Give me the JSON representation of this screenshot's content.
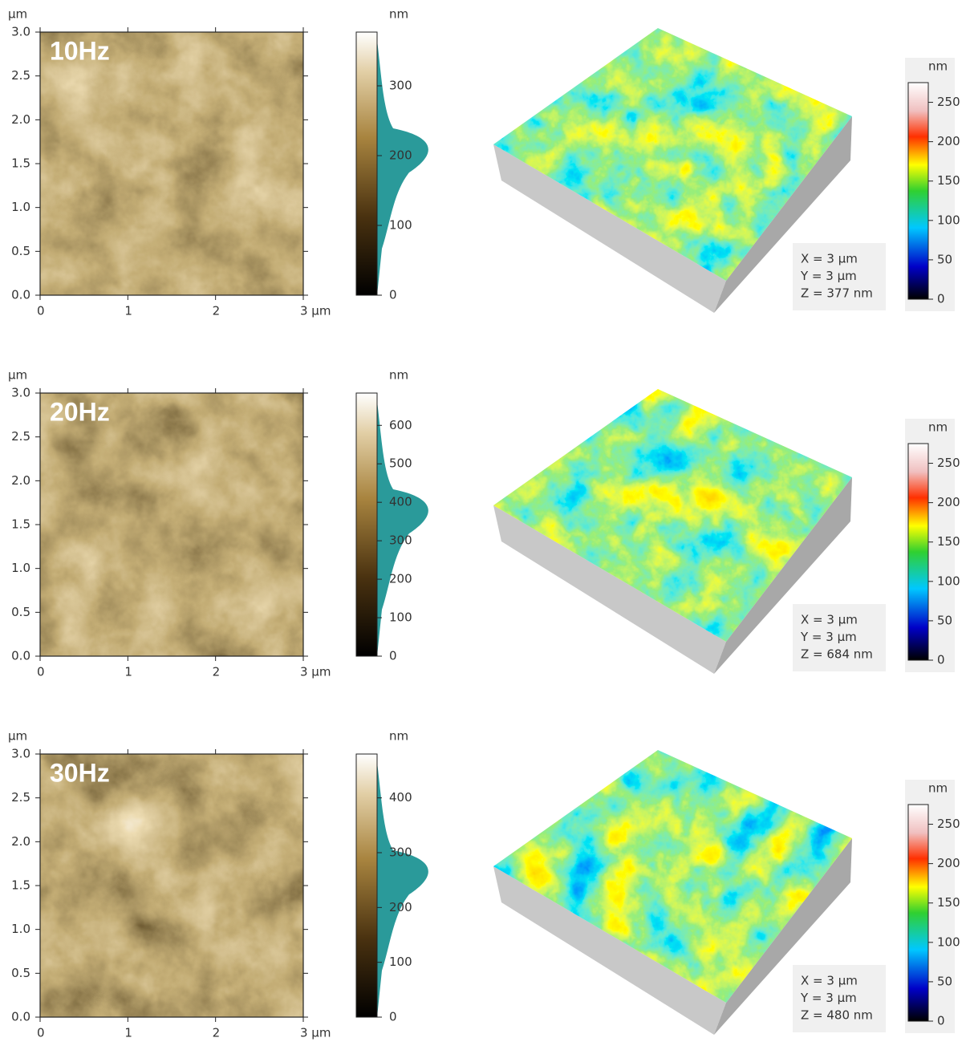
{
  "chart_data": [
    {
      "type": "afm",
      "map": {
        "label": "10Hz",
        "y_unit": "µm",
        "xlim": [
          0,
          3
        ],
        "ylim": [
          0,
          3
        ],
        "xticks": [
          0,
          1,
          2,
          {
            "value": 3,
            "label": "3 µm"
          }
        ],
        "yticks": [
          {
            "value": 0,
            "label": "0.0"
          },
          {
            "value": 0.5,
            "label": "0.5"
          },
          {
            "value": 1,
            "label": "1.0"
          },
          {
            "value": 1.5,
            "label": "1.5"
          },
          {
            "value": 2,
            "label": "2.0"
          },
          {
            "value": 2.5,
            "label": "2.5"
          },
          {
            "value": 3,
            "label": "3.0"
          }
        ]
      },
      "colorbar": {
        "title": "nm",
        "ylim": [
          0,
          377
        ],
        "yticks": [
          0,
          100,
          200,
          300
        ]
      },
      "view3d": {
        "colorbar": {
          "title": "nm",
          "ylim": [
            0,
            275
          ],
          "yticks": [
            0,
            50,
            100,
            150,
            200,
            250
          ]
        },
        "annotation": [
          "X = 3 µm",
          "Y = 3 µm",
          "Z = 377 nm"
        ]
      }
    },
    {
      "type": "afm",
      "map": {
        "label": "20Hz",
        "y_unit": "µm",
        "xlim": [
          0,
          3
        ],
        "ylim": [
          0,
          3
        ],
        "xticks": [
          0,
          1,
          2,
          {
            "value": 3,
            "label": "3 µm"
          }
        ],
        "yticks": [
          {
            "value": 0,
            "label": "0.0"
          },
          {
            "value": 0.5,
            "label": "0.5"
          },
          {
            "value": 1,
            "label": "1.0"
          },
          {
            "value": 1.5,
            "label": "1.5"
          },
          {
            "value": 2,
            "label": "2.0"
          },
          {
            "value": 2.5,
            "label": "2.5"
          },
          {
            "value": 3,
            "label": "3.0"
          }
        ]
      },
      "colorbar": {
        "title": "nm",
        "ylim": [
          0,
          684
        ],
        "yticks": [
          0,
          100,
          200,
          300,
          400,
          500,
          600
        ]
      },
      "view3d": {
        "colorbar": {
          "title": "nm",
          "ylim": [
            0,
            275
          ],
          "yticks": [
            0,
            50,
            100,
            150,
            200,
            250
          ]
        },
        "annotation": [
          "X = 3 µm",
          "Y = 3 µm",
          "Z = 684 nm"
        ]
      }
    },
    {
      "type": "afm",
      "map": {
        "label": "30Hz",
        "y_unit": "µm",
        "xlim": [
          0,
          3
        ],
        "ylim": [
          0,
          3
        ],
        "xticks": [
          0,
          1,
          2,
          {
            "value": 3,
            "label": "3 µm"
          }
        ],
        "yticks": [
          {
            "value": 0,
            "label": "0.0"
          },
          {
            "value": 0.5,
            "label": "0.5"
          },
          {
            "value": 1,
            "label": "1.0"
          },
          {
            "value": 1.5,
            "label": "1.5"
          },
          {
            "value": 2,
            "label": "2.0"
          },
          {
            "value": 2.5,
            "label": "2.5"
          },
          {
            "value": 3,
            "label": "3.0"
          }
        ]
      },
      "colorbar": {
        "title": "nm",
        "ylim": [
          0,
          480
        ],
        "yticks": [
          0,
          100,
          200,
          300,
          400
        ]
      },
      "view3d": {
        "colorbar": {
          "title": "nm",
          "ylim": [
            0,
            275
          ],
          "yticks": [
            0,
            50,
            100,
            150,
            200,
            250
          ]
        },
        "annotation": [
          "X = 3 µm",
          "Y = 3 µm",
          "Z = 480 nm"
        ]
      }
    }
  ]
}
